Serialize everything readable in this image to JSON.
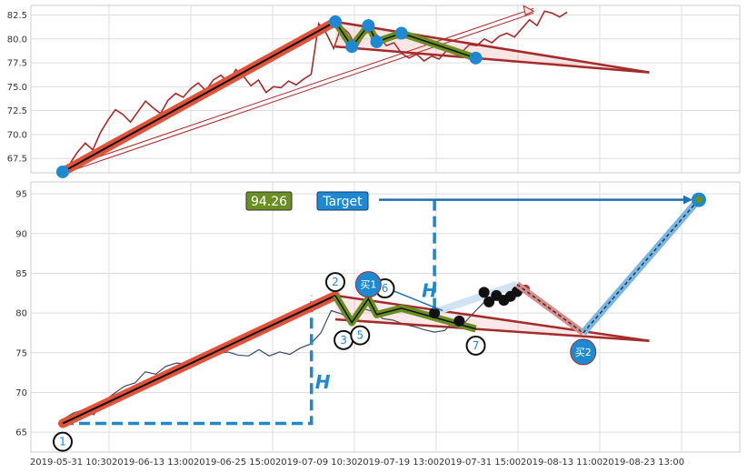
{
  "chart_data": [
    {
      "panel": "top",
      "type": "line",
      "title": "",
      "xlabel": "",
      "ylabel": "",
      "ylim": [
        66,
        83.5
      ],
      "yticks": [
        "67.5",
        "70.0",
        "72.5",
        "75.0",
        "77.5",
        "80.0",
        "82.5"
      ],
      "grid": true,
      "colors": {
        "price": "#a52a2a",
        "accent": "#1e88d0",
        "band": "#e0523a",
        "inner": "#6b8e23"
      },
      "price_series": [
        66.1,
        67.0,
        68.2,
        69.1,
        68.4,
        70.2,
        71.5,
        72.6,
        72.1,
        71.3,
        72.4,
        73.5,
        72.8,
        72.2,
        73.6,
        74.3,
        73.9,
        74.8,
        75.4,
        74.6,
        75.7,
        76.2,
        75.5,
        76.8,
        76.1,
        75.1,
        75.7,
        74.4,
        75.0,
        74.9,
        75.6,
        75.2,
        75.8,
        76.3,
        81.6,
        80.6,
        79.0,
        81.3,
        80.6,
        79.1,
        80.4,
        81.0,
        80.2,
        79.3,
        79.6,
        78.5,
        78.0,
        78.4,
        77.7,
        78.2,
        77.9,
        78.8,
        79.1,
        78.6,
        79.4,
        79.3,
        80.0,
        79.6,
        80.3,
        80.6,
        80.2,
        81.1,
        82.0,
        81.4,
        82.9,
        82.7,
        82.3,
        82.8
      ],
      "zigzag": [
        [
          0,
          66.1
        ],
        [
          33,
          81.8
        ],
        [
          35,
          79.2
        ],
        [
          37,
          81.4
        ],
        [
          38,
          79.7
        ],
        [
          41,
          80.6
        ],
        [
          50,
          78.0
        ]
      ],
      "trend_line": [
        [
          33,
          79.2
        ],
        [
          71,
          76.5
        ]
      ],
      "projection_arrow": [
        [
          0,
          66.1
        ],
        [
          57,
          82.9
        ]
      ]
    },
    {
      "panel": "bottom",
      "type": "line",
      "title": "",
      "xlabel": "",
      "ylabel": "",
      "ylim": [
        62.5,
        96.5
      ],
      "yticks": [
        "65",
        "70",
        "75",
        "80",
        "85",
        "90",
        "95"
      ],
      "grid": true,
      "xticks": [
        "2019-05-31 10:30",
        "2019-06-13 13:00",
        "2019-06-25 15:00",
        "2019-07-09 10:30",
        "2019-07-19 13:00",
        "2019-07-31 15:00",
        "2019-08-13 11:00",
        "2019-08-23 13:00"
      ],
      "price_series": [
        66.6,
        67.4,
        67.8,
        67.2,
        68.9,
        69.9,
        70.8,
        71.2,
        72.6,
        72.3,
        73.3,
        73.7,
        73.6,
        74.0,
        74.5,
        74.9,
        75.1,
        74.7,
        74.6,
        75.4,
        74.6,
        75.1,
        74.8,
        75.6,
        76.1,
        77.5,
        80.3,
        79.9,
        78.9,
        80.6,
        80.2,
        79.3,
        79.1,
        78.6,
        78.3,
        77.9,
        77.6,
        77.8,
        79.2,
        78.9,
        80.3,
        81.6,
        82.4,
        82.1,
        82.6
      ],
      "black_points": [
        [
          45,
          80.0
        ],
        [
          48,
          79.0
        ],
        [
          51,
          82.6
        ],
        [
          51.6,
          81.4
        ],
        [
          52.5,
          82.2
        ],
        [
          53.4,
          81.6
        ],
        [
          54.2,
          82.1
        ],
        [
          55,
          82.7
        ]
      ],
      "red_marker": [
        56,
        83.0
      ],
      "zigzag": [
        [
          0,
          66.1
        ],
        [
          33,
          82.2
        ],
        [
          35,
          78.8
        ],
        [
          37,
          81.8
        ],
        [
          38,
          79.8
        ],
        [
          41,
          80.6
        ],
        [
          50,
          78.0
        ]
      ],
      "trend_line": [
        [
          33,
          79.2
        ],
        [
          71,
          76.5
        ]
      ],
      "breakout_line": [
        [
          45,
          80.1
        ],
        [
          55,
          83.6
        ]
      ],
      "fall_line": [
        [
          55,
          83.6
        ],
        [
          63,
          77.5
        ]
      ],
      "target_line": [
        [
          63,
          77.5
        ],
        [
          77,
          94.3
        ]
      ],
      "target_value": "94.26",
      "target_label": "Target",
      "target_y": 94.26,
      "target_x_range": [
        40,
        77
      ],
      "h_measure_1": {
        "x_start": 0,
        "x_end": 30,
        "y_low": 66.1,
        "y_high": 82.2,
        "label": "H"
      },
      "h_measure_2": {
        "x": 45,
        "y_low": 80.1,
        "y_high": 94.26,
        "label": "H"
      },
      "point_labels": [
        {
          "text": "1",
          "x": 0,
          "y": 63.8
        },
        {
          "text": "2",
          "x": 33,
          "y": 83.9
        },
        {
          "text": "3",
          "x": 34,
          "y": 76.6
        },
        {
          "text": "5",
          "x": 36,
          "y": 77.2
        },
        {
          "text": "6",
          "x": 39,
          "y": 83.1
        },
        {
          "text": "7",
          "x": 50,
          "y": 75.9
        }
      ],
      "buy_labels": [
        {
          "text": "买1",
          "x": 37,
          "y": 83.6
        },
        {
          "text": "买2",
          "x": 63,
          "y": 75.1
        }
      ]
    }
  ]
}
